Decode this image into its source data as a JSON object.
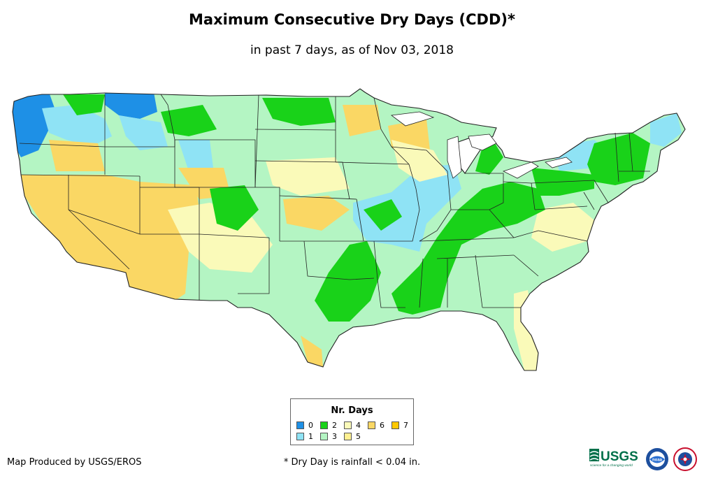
{
  "header": {
    "title": "Maximum Consecutive Dry Days (CDD)*",
    "subtitle": "in past 7 days, as of Nov 03, 2018"
  },
  "legend": {
    "title": "Nr. Days",
    "items": [
      {
        "label": "0",
        "color": "#1e90e6"
      },
      {
        "label": "1",
        "color": "#8fe3f5"
      },
      {
        "label": "2",
        "color": "#19d219"
      },
      {
        "label": "3",
        "color": "#b4f5c3"
      },
      {
        "label": "4",
        "color": "#fafab9"
      },
      {
        "label": "5",
        "color": "#fff091"
      },
      {
        "label": "6",
        "color": "#fad764"
      },
      {
        "label": "7",
        "color": "#ffc800"
      }
    ]
  },
  "footer": {
    "producer": "Map Produced by USGS/EROS",
    "footnote": "* Dry Day is rainfall < 0.04 in.",
    "usgs_logo_text": "USGS",
    "usgs_tagline": "science for a changing world",
    "noaa_text": "noaa"
  }
}
